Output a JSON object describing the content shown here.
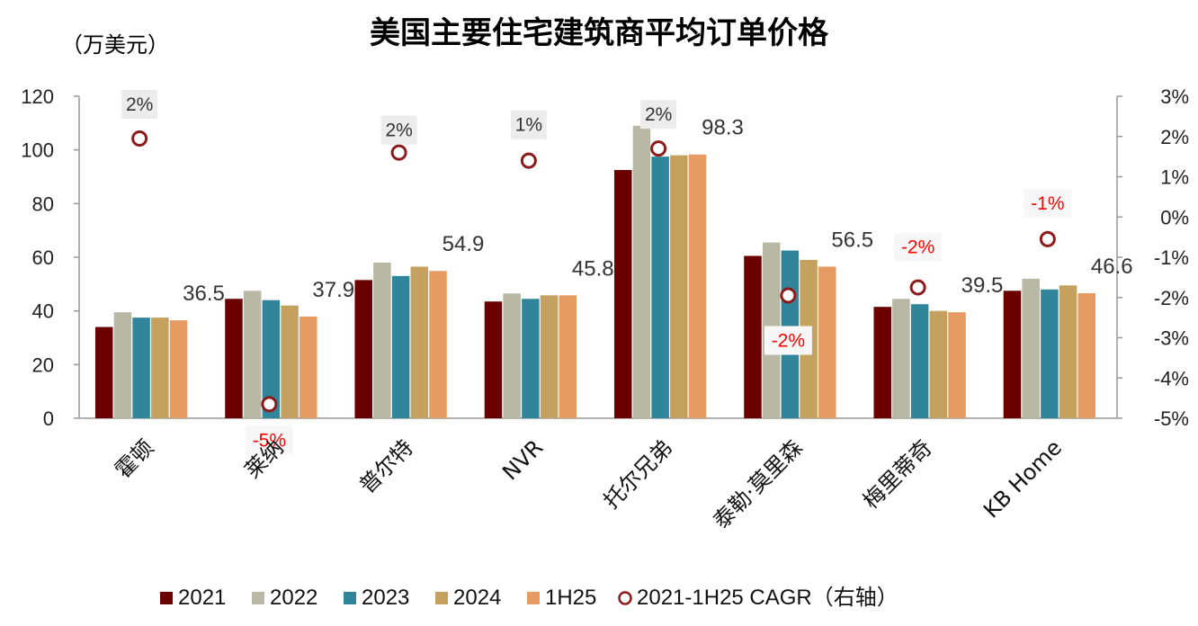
{
  "chart_data": {
    "type": "bar",
    "title": "美国主要住宅建筑商平均订单价格",
    "y_unit_label": "（万美元）",
    "ylim": [
      0,
      120
    ],
    "y_ticks": [
      0,
      20,
      40,
      60,
      80,
      100,
      120
    ],
    "y2lim": [
      -5,
      3
    ],
    "y2_ticks": [
      "3%",
      "2%",
      "1%",
      "0%",
      "-1%",
      "-2%",
      "-3%",
      "-4%",
      "-5%"
    ],
    "y2_tick_values": [
      3,
      2,
      1,
      0,
      -1,
      -2,
      -3,
      -4,
      -5
    ],
    "categories": [
      "霍顿",
      "莱纳",
      "普尔特",
      "NVR",
      "托尔兄弟",
      "泰勒·莫里森",
      "梅里蒂奇",
      "KB Home"
    ],
    "series": [
      {
        "name": "2021",
        "color": "#6b0000",
        "values": [
          34,
          44.5,
          51.5,
          43.5,
          92.5,
          60.5,
          41.5,
          47.5
        ]
      },
      {
        "name": "2022",
        "color": "#b9b8a5",
        "values": [
          39.5,
          47.5,
          58,
          46.5,
          109,
          65.5,
          44.5,
          52
        ]
      },
      {
        "name": "2023",
        "color": "#31859b",
        "values": [
          37.5,
          44,
          53,
          44.5,
          97.5,
          62.5,
          42.5,
          48
        ]
      },
      {
        "name": "2024",
        "color": "#c5a160",
        "values": [
          37.5,
          42,
          56.5,
          45.8,
          98,
          59,
          40,
          49.5
        ]
      },
      {
        "name": "1H25",
        "color": "#e59b62",
        "values": [
          36.5,
          37.9,
          54.9,
          45.8,
          98.3,
          56.5,
          39.5,
          46.6
        ]
      }
    ],
    "value_labels": [
      "36.5",
      "37.9",
      "54.9",
      "45.8",
      "98.3",
      "56.5",
      "39.5",
      "46.6"
    ],
    "cagr": {
      "name": "2021-1H25 CAGR（右轴）",
      "color": "#8b1a1a",
      "values": [
        1.95,
        -4.65,
        1.6,
        1.4,
        1.7,
        -1.95,
        -1.75,
        -0.55
      ],
      "labels": [
        "2%",
        "-5%",
        "2%",
        "1%",
        "2%",
        "-2%",
        "-2%",
        "-1%"
      ]
    },
    "legend_position": "bottom"
  }
}
